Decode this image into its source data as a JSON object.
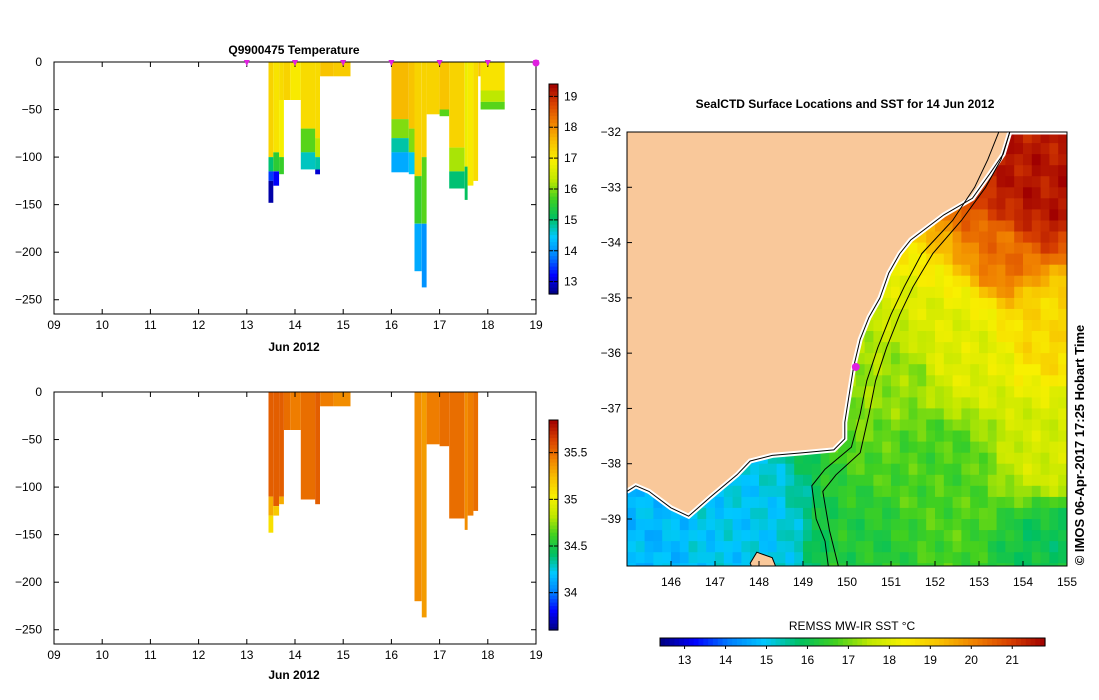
{
  "colors": {
    "land": "#f9c89a",
    "coast": "#000000",
    "marker": "#e020e0",
    "jet": [
      "#00007f",
      "#0000ff",
      "#0080ff",
      "#00c8ff",
      "#00c060",
      "#40d020",
      "#c0e800",
      "#f8f000",
      "#f8c000",
      "#f08000",
      "#d84000",
      "#a00000"
    ]
  },
  "chart_data": [
    {
      "id": "temperature-profile",
      "type": "heatmap",
      "title": "Q9900475  Temperature",
      "xlabel": "Jun 2012",
      "xlim": [
        9,
        19
      ],
      "ylim": [
        -265,
        0
      ],
      "xticks": [
        "09",
        "10",
        "11",
        "12",
        "13",
        "14",
        "15",
        "16",
        "17",
        "18",
        "19"
      ],
      "yticks": [
        0,
        -50,
        -100,
        -150,
        -200,
        -250
      ],
      "surface_markers": [
        13,
        14,
        15,
        16,
        17,
        18,
        19
      ],
      "colorbar": {
        "min": 12.6,
        "max": 19.4,
        "ticks": [
          13,
          14,
          15,
          16,
          17,
          18,
          19
        ]
      },
      "profiles": [
        {
          "x": 13.45,
          "w": 0.1,
          "depth": 148,
          "segments": [
            [
              0,
              100,
              17.3
            ],
            [
              100,
              115,
              15.0
            ],
            [
              115,
              125,
              13.5
            ],
            [
              125,
              148,
              12.8
            ]
          ]
        },
        {
          "x": 13.55,
          "w": 0.12,
          "depth": 130,
          "segments": [
            [
              0,
              95,
              17.1
            ],
            [
              95,
              115,
              15.5
            ],
            [
              115,
              130,
              13.2
            ]
          ]
        },
        {
          "x": 13.67,
          "w": 0.1,
          "depth": 118,
          "segments": [
            [
              0,
              40,
              17.2
            ],
            [
              40,
              100,
              16.9
            ],
            [
              100,
              118,
              15.6
            ]
          ]
        },
        {
          "x": 13.77,
          "w": 0.13,
          "depth": 40,
          "segments": [
            [
              0,
              40,
              17.3
            ]
          ]
        },
        {
          "x": 13.9,
          "w": 0.22,
          "depth": 40,
          "segments": [
            [
              0,
              40,
              17.0
            ]
          ]
        },
        {
          "x": 14.12,
          "w": 0.3,
          "depth": 113,
          "segments": [
            [
              0,
              70,
              17.2
            ],
            [
              70,
              95,
              15.8
            ],
            [
              95,
              113,
              14.7
            ]
          ]
        },
        {
          "x": 14.42,
          "w": 0.1,
          "depth": 118,
          "segments": [
            [
              0,
              80,
              17.2
            ],
            [
              80,
              100,
              16.3
            ],
            [
              100,
              113,
              14.8
            ],
            [
              113,
              118,
              13.0
            ]
          ]
        },
        {
          "x": 14.52,
          "w": 0.28,
          "depth": 15,
          "segments": [
            [
              0,
              15,
              17.5
            ]
          ]
        },
        {
          "x": 14.8,
          "w": 0.35,
          "depth": 15,
          "segments": [
            [
              0,
              15,
              17.4
            ]
          ]
        },
        {
          "x": 16.0,
          "w": 0.36,
          "depth": 116,
          "segments": [
            [
              0,
              60,
              17.6
            ],
            [
              60,
              80,
              16.0
            ],
            [
              80,
              95,
              14.8
            ],
            [
              95,
              116,
              14.2
            ]
          ]
        },
        {
          "x": 16.36,
          "w": 0.12,
          "depth": 118,
          "segments": [
            [
              0,
              70,
              17.5
            ],
            [
              70,
              95,
              16.0
            ],
            [
              95,
              118,
              14.5
            ]
          ]
        },
        {
          "x": 16.48,
          "w": 0.15,
          "depth": 220,
          "segments": [
            [
              0,
              120,
              17.3
            ],
            [
              120,
              170,
              15.6
            ],
            [
              170,
              220,
              14.2
            ]
          ]
        },
        {
          "x": 16.63,
          "w": 0.1,
          "depth": 237,
          "segments": [
            [
              0,
              100,
              17.3
            ],
            [
              100,
              170,
              15.8
            ],
            [
              170,
              237,
              14.0
            ]
          ]
        },
        {
          "x": 16.73,
          "w": 0.27,
          "depth": 55,
          "segments": [
            [
              0,
              55,
              17.3
            ]
          ]
        },
        {
          "x": 17.0,
          "w": 0.2,
          "depth": 57,
          "segments": [
            [
              0,
              50,
              17.5
            ],
            [
              50,
              57,
              15.8
            ]
          ]
        },
        {
          "x": 17.2,
          "w": 0.32,
          "depth": 133,
          "segments": [
            [
              0,
              90,
              17.3
            ],
            [
              90,
              115,
              16.2
            ],
            [
              115,
              133,
              15.0
            ]
          ]
        },
        {
          "x": 17.52,
          "w": 0.06,
          "depth": 145,
          "segments": [
            [
              0,
              110,
              16.8
            ],
            [
              110,
              145,
              15.1
            ]
          ]
        },
        {
          "x": 17.58,
          "w": 0.12,
          "depth": 130,
          "segments": [
            [
              0,
              130,
              17.0
            ]
          ]
        },
        {
          "x": 17.7,
          "w": 0.1,
          "depth": 125,
          "segments": [
            [
              0,
              125,
              17.2
            ]
          ]
        },
        {
          "x": 17.8,
          "w": 0.05,
          "depth": 15,
          "segments": [
            [
              0,
              15,
              17.5
            ]
          ]
        },
        {
          "x": 17.85,
          "w": 0.5,
          "depth": 50,
          "segments": [
            [
              0,
              30,
              17.1
            ],
            [
              30,
              42,
              16.3
            ],
            [
              42,
              50,
              15.8
            ]
          ]
        }
      ]
    },
    {
      "id": "salinity-profile",
      "type": "heatmap",
      "title": "",
      "xlabel": "Jun 2012",
      "xlim": [
        9,
        19
      ],
      "ylim": [
        -265,
        0
      ],
      "xticks": [
        "09",
        "10",
        "11",
        "12",
        "13",
        "14",
        "15",
        "16",
        "17",
        "18",
        "19"
      ],
      "yticks": [
        0,
        -50,
        -100,
        -150,
        -200,
        -250
      ],
      "colorbar": {
        "min": 33.6,
        "max": 35.85,
        "ticks": [
          34,
          34.5,
          35,
          35.5
        ]
      },
      "profiles": [
        {
          "x": 13.45,
          "w": 0.1,
          "depth": 148,
          "segments": [
            [
              0,
              110,
              35.55
            ],
            [
              110,
              130,
              35.3
            ],
            [
              130,
              148,
              35.1
            ]
          ]
        },
        {
          "x": 13.55,
          "w": 0.12,
          "depth": 130,
          "segments": [
            [
              0,
              120,
              35.55
            ],
            [
              120,
              130,
              35.2
            ]
          ]
        },
        {
          "x": 13.67,
          "w": 0.1,
          "depth": 118,
          "segments": [
            [
              0,
              110,
              35.55
            ],
            [
              110,
              118,
              35.3
            ]
          ]
        },
        {
          "x": 13.77,
          "w": 0.13,
          "depth": 40,
          "segments": [
            [
              0,
              40,
              35.5
            ]
          ]
        },
        {
          "x": 13.9,
          "w": 0.22,
          "depth": 40,
          "segments": [
            [
              0,
              40,
              35.45
            ]
          ]
        },
        {
          "x": 14.12,
          "w": 0.3,
          "depth": 113,
          "segments": [
            [
              0,
              113,
              35.5
            ]
          ]
        },
        {
          "x": 14.42,
          "w": 0.1,
          "depth": 118,
          "segments": [
            [
              0,
              118,
              35.55
            ]
          ]
        },
        {
          "x": 14.52,
          "w": 0.28,
          "depth": 15,
          "segments": [
            [
              0,
              15,
              35.45
            ]
          ]
        },
        {
          "x": 14.8,
          "w": 0.35,
          "depth": 15,
          "segments": [
            [
              0,
              15,
              35.4
            ]
          ]
        },
        {
          "x": 16.48,
          "w": 0.15,
          "depth": 220,
          "segments": [
            [
              0,
              220,
              35.4
            ]
          ]
        },
        {
          "x": 16.63,
          "w": 0.1,
          "depth": 237,
          "segments": [
            [
              0,
              237,
              35.35
            ]
          ]
        },
        {
          "x": 16.73,
          "w": 0.27,
          "depth": 55,
          "segments": [
            [
              0,
              55,
              35.45
            ]
          ]
        },
        {
          "x": 17.0,
          "w": 0.2,
          "depth": 57,
          "segments": [
            [
              0,
              57,
              35.5
            ]
          ]
        },
        {
          "x": 17.2,
          "w": 0.32,
          "depth": 133,
          "segments": [
            [
              0,
              133,
              35.5
            ]
          ]
        },
        {
          "x": 17.52,
          "w": 0.06,
          "depth": 145,
          "segments": [
            [
              0,
              145,
              35.4
            ]
          ]
        },
        {
          "x": 17.58,
          "w": 0.12,
          "depth": 130,
          "segments": [
            [
              0,
              130,
              35.45
            ]
          ]
        },
        {
          "x": 17.7,
          "w": 0.1,
          "depth": 125,
          "segments": [
            [
              0,
              125,
              35.5
            ]
          ]
        }
      ]
    },
    {
      "id": "sst-map",
      "type": "heatmap",
      "title": "SealCTD Surface Locations and SST for 14 Jun 2012",
      "colorbar_label": "REMSS MW-IR SST °C",
      "credit": "© IMOS 06-Apr-2017 17:25 Hobart Time",
      "lon_range": [
        145,
        155
      ],
      "lat_range": [
        -40,
        -32
      ],
      "lon_ticks": [
        146,
        147,
        148,
        149,
        150,
        151,
        152,
        153,
        154,
        155
      ],
      "lat_ticks": [
        -32,
        -33,
        -34,
        -35,
        -36,
        -37,
        -38,
        -39
      ],
      "colorbar": {
        "min": 12.4,
        "max": 21.8,
        "ticks": [
          13,
          14,
          15,
          16,
          17,
          18,
          19,
          20,
          21
        ]
      },
      "surface_location": {
        "lon": 150.2,
        "lat": -36.25
      },
      "coastline": [
        [
          155,
          -32
        ],
        [
          153.7,
          -32
        ],
        [
          153.55,
          -32.4
        ],
        [
          153.25,
          -32.75
        ],
        [
          152.85,
          -33.2
        ],
        [
          152.2,
          -33.5
        ],
        [
          151.45,
          -33.95
        ],
        [
          151.2,
          -34.2
        ],
        [
          150.95,
          -34.55
        ],
        [
          150.75,
          -35.0
        ],
        [
          150.5,
          -35.35
        ],
        [
          150.3,
          -35.75
        ],
        [
          150.15,
          -36.25
        ],
        [
          150.05,
          -36.75
        ],
        [
          149.95,
          -37.25
        ],
        [
          149.95,
          -37.55
        ],
        [
          149.7,
          -37.75
        ],
        [
          149.0,
          -37.8
        ],
        [
          148.3,
          -37.85
        ],
        [
          147.8,
          -37.95
        ],
        [
          147.5,
          -38.2
        ],
        [
          146.9,
          -38.6
        ],
        [
          146.4,
          -38.95
        ],
        [
          146.0,
          -38.8
        ],
        [
          145.5,
          -38.5
        ],
        [
          145.2,
          -38.4
        ],
        [
          145,
          -38.5
        ]
      ],
      "isobaths": [
        [
          [
            153.45,
            -32
          ],
          [
            153.2,
            -32.5
          ],
          [
            152.9,
            -33.0
          ],
          [
            152.4,
            -33.6
          ],
          [
            151.7,
            -34.2
          ],
          [
            151.3,
            -34.8
          ],
          [
            151.0,
            -35.3
          ],
          [
            150.7,
            -35.9
          ],
          [
            150.45,
            -36.5
          ],
          [
            150.3,
            -37.1
          ],
          [
            150.1,
            -37.7
          ],
          [
            149.5,
            -38.1
          ],
          [
            149.2,
            -38.4
          ],
          [
            149.3,
            -39.0
          ],
          [
            149.5,
            -39.4
          ],
          [
            149.6,
            -40
          ]
        ],
        [
          [
            153.7,
            -32
          ],
          [
            153.5,
            -32.5
          ],
          [
            153.15,
            -33.0
          ],
          [
            152.6,
            -33.6
          ],
          [
            151.95,
            -34.2
          ],
          [
            151.5,
            -34.8
          ],
          [
            151.2,
            -35.3
          ],
          [
            150.9,
            -35.9
          ],
          [
            150.65,
            -36.5
          ],
          [
            150.5,
            -37.1
          ],
          [
            150.3,
            -37.8
          ],
          [
            149.75,
            -38.2
          ],
          [
            149.45,
            -38.5
          ],
          [
            149.6,
            -39.2
          ],
          [
            149.85,
            -40
          ]
        ]
      ],
      "islands": [
        [
          [
            147.95,
            -39.6
          ],
          [
            148.3,
            -39.7
          ],
          [
            148.45,
            -40
          ],
          [
            147.9,
            -40
          ],
          [
            147.8,
            -39.8
          ]
        ]
      ],
      "sst_anchors": [
        {
          "lon": 154.3,
          "lat": -33.0,
          "v": 21.5,
          "r": 1.5
        },
        {
          "lon": 153.6,
          "lat": -34.2,
          "v": 20.3,
          "r": 1.0
        },
        {
          "lon": 154.6,
          "lat": -35.5,
          "v": 18.8,
          "r": 1.2
        },
        {
          "lon": 152.5,
          "lat": -36.0,
          "v": 18.0,
          "r": 1.5
        },
        {
          "lon": 151.5,
          "lat": -36.5,
          "v": 17.2,
          "r": 1.0
        },
        {
          "lon": 152.0,
          "lat": -38.0,
          "v": 16.7,
          "r": 1.5
        },
        {
          "lon": 154.5,
          "lat": -37.8,
          "v": 17.8,
          "r": 1.2
        },
        {
          "lon": 154.5,
          "lat": -39.5,
          "v": 16.0,
          "r": 1.2
        },
        {
          "lon": 150.5,
          "lat": -39.5,
          "v": 16.3,
          "r": 1.0
        },
        {
          "lon": 147.5,
          "lat": -39.3,
          "v": 15.0,
          "r": 1.3
        },
        {
          "lon": 145.5,
          "lat": -39.5,
          "v": 14.8,
          "r": 1.0
        }
      ]
    }
  ]
}
